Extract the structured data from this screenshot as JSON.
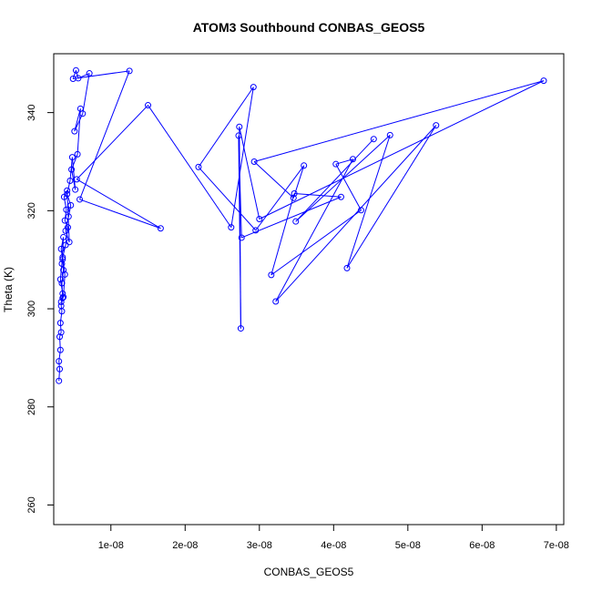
{
  "chart_data": {
    "type": "line",
    "title": "ATOM3 Southbound CONBAS_GEOS5",
    "xlabel": "CONBAS_GEOS5",
    "ylabel": "Theta (K)",
    "xlim": [
      2.3e-09,
      7.1e-08
    ],
    "ylim": [
      256,
      352
    ],
    "x_ticks": [
      1e-08,
      2e-08,
      3e-08,
      4e-08,
      5e-08,
      6e-08,
      7e-08
    ],
    "x_tick_labels": [
      "1e-08",
      "2e-08",
      "3e-08",
      "4e-08",
      "5e-08",
      "6e-08",
      "7e-08"
    ],
    "y_ticks": [
      260,
      280,
      300,
      320,
      340
    ],
    "y_tick_labels": [
      "260",
      "280",
      "300",
      "320",
      "340"
    ],
    "grid": false,
    "legend": "none",
    "markers": "open-circle",
    "series_color": "#0000ff",
    "series": [
      {
        "x": [
          3e-09,
          3.1e-09,
          3e-09,
          3.2e-09,
          3.1e-09,
          3.3e-09,
          3.2e-09,
          3.4e-09,
          3.3e-09,
          3.5e-09,
          3.4e-09,
          3.6e-09,
          3.5e-09,
          3.3e-09,
          3.6e-09,
          3.4e-09,
          3.2e-09,
          3.5e-09,
          3.3e-09,
          3.6e-09,
          3.8e-09,
          3.5e-09,
          3.9e-09,
          4.2e-09,
          3.8e-09,
          4e-09,
          3.7e-09,
          4.1e-09,
          4.4e-09,
          3.9e-09,
          4.3e-09,
          4.6e-09,
          4.1e-09,
          4.5e-09,
          4.8e-09,
          5.2e-09,
          4.7e-09,
          5.5e-09,
          5.9e-09,
          5.1e-09,
          6.2e-09,
          7.1e-09,
          5.6e-09,
          5.3e-09,
          4.9e-09,
          1.25e-08,
          5.8e-09,
          1.67e-08,
          5.4e-09,
          1.5e-08,
          2.62e-08,
          2.92e-08,
          2.18e-08,
          2.95e-08,
          3.6e-08,
          3.46e-08,
          2.93e-08,
          6.83e-08,
          3e-08,
          2.73e-08,
          2.75e-08,
          2.72e-08,
          2.76e-08,
          4.1e-08,
          3.47e-08,
          3.16e-08,
          4.37e-08,
          4.03e-08,
          4.26e-08,
          3.22e-08,
          5.38e-08,
          4.18e-08,
          4.76e-08,
          3.49e-08,
          4.54e-08
        ],
        "y": [
          285.3,
          287.7,
          289.3,
          291.6,
          294.3,
          295.2,
          297.1,
          299.5,
          300.6,
          302.2,
          305.2,
          307.9,
          310.1,
          312.2,
          314.6,
          309.2,
          306.0,
          303.1,
          301.4,
          302.4,
          307.0,
          310.5,
          313.0,
          316.6,
          318.0,
          320.2,
          322.8,
          324.1,
          313.6,
          315.9,
          318.8,
          321.1,
          323.4,
          326.1,
          330.9,
          324.3,
          328.4,
          331.5,
          340.8,
          336.2,
          339.8,
          348.0,
          347.0,
          348.6,
          346.9,
          348.5,
          322.3,
          316.4,
          326.4,
          341.5,
          316.6,
          345.2,
          328.9,
          316.0,
          329.2,
          322.6,
          330.0,
          346.5,
          318.3,
          337.1,
          296.0,
          335.3,
          314.5,
          322.8,
          323.5,
          306.9,
          320.1,
          329.5,
          330.5,
          301.5,
          337.4,
          308.3,
          335.4,
          317.8,
          334.6
        ]
      }
    ]
  }
}
